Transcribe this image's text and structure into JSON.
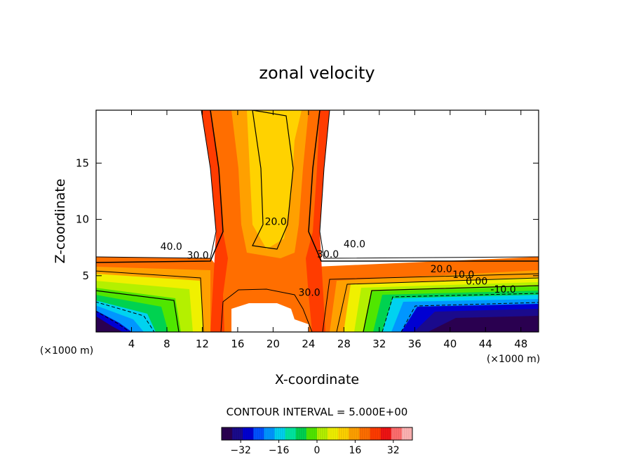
{
  "chart_data": {
    "type": "contour",
    "title": "zonal velocity",
    "xlabel": "X-coordinate",
    "ylabel": "Z-coordinate",
    "x_unit_label": "(×1000 m)",
    "xlim": [
      0,
      50
    ],
    "ylim": [
      0,
      19.7
    ],
    "x_ticks": [
      4,
      8,
      12,
      16,
      20,
      24,
      28,
      32,
      36,
      40,
      44,
      48
    ],
    "y_ticks": [
      5,
      10,
      15
    ],
    "contour_interval_text": "CONTOUR INTERVAL = 5.000E+00",
    "contour_interval": 5,
    "contour_labels": [
      {
        "text": "40.0",
        "x": 8.5,
        "z": 7.3
      },
      {
        "text": "30.0",
        "x": 11.5,
        "z": 6.5
      },
      {
        "text": "20.0",
        "x": 20.3,
        "z": 9.5
      },
      {
        "text": "30.0",
        "x": 26.2,
        "z": 6.6
      },
      {
        "text": "40.0",
        "x": 29.2,
        "z": 7.5
      },
      {
        "text": "30.0",
        "x": 24.1,
        "z": 3.2
      },
      {
        "text": "20.0",
        "x": 39.0,
        "z": 5.3
      },
      {
        "text": "10.0",
        "x": 41.5,
        "z": 4.8
      },
      {
        "text": "0.00",
        "x": 43.0,
        "z": 4.2
      },
      {
        "text": "-10.0",
        "x": 46.0,
        "z": 3.5
      }
    ],
    "colorbar": {
      "ticks": [
        -32,
        -16,
        0,
        16,
        32
      ],
      "tick_labels": [
        "−32",
        "−16",
        "0",
        "16",
        "32"
      ],
      "range": [
        -40,
        40
      ],
      "colors": [
        "#2a0050",
        "#1a0a8c",
        "#0000d2",
        "#0050ff",
        "#0096ff",
        "#00d2f0",
        "#00e6a0",
        "#00d250",
        "#50e600",
        "#b4f000",
        "#f0f000",
        "#ffd200",
        "#ffa000",
        "#ff6e00",
        "#ff3c00",
        "#f01414",
        "#ff6e6e",
        "#ffb4b4"
      ]
    }
  }
}
